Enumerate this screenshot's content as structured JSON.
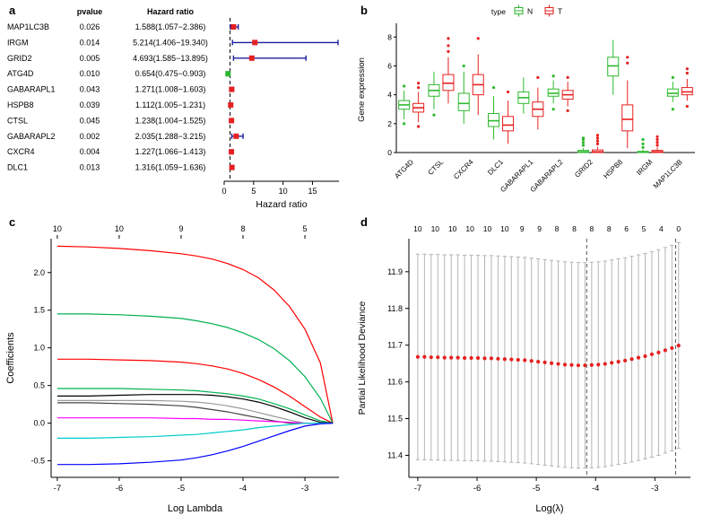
{
  "chart_data": [
    {
      "panel": "a",
      "type": "forest",
      "col_headers": {
        "pvalue": "pvalue",
        "hr": "Hazard ratio"
      },
      "xlabel": "Hazard ratio",
      "x_ticks": [
        0,
        5,
        10,
        15
      ],
      "x_max": 19.5,
      "ref_line": 1,
      "ci_color": "#1f1fa0",
      "rows": [
        {
          "gene": "MAP1LC3B",
          "pvalue": "0.026",
          "hr_text": "1.588(1.057−2.386)",
          "hr": 1.588,
          "lo": 1.057,
          "hi": 2.386,
          "color": "#e62020"
        },
        {
          "gene": "IRGM",
          "pvalue": "0.014",
          "hr_text": "5.214(1.406−19.340)",
          "hr": 5.214,
          "lo": 1.406,
          "hi": 19.34,
          "color": "#e62020"
        },
        {
          "gene": "GRID2",
          "pvalue": "0.005",
          "hr_text": "4.693(1.585−13.895)",
          "hr": 4.693,
          "lo": 1.585,
          "hi": 13.895,
          "color": "#e62020"
        },
        {
          "gene": "ATG4D",
          "pvalue": "0.010",
          "hr_text": "0.654(0.475−0.903)",
          "hr": 0.654,
          "lo": 0.475,
          "hi": 0.903,
          "color": "#2db92d"
        },
        {
          "gene": "GABARAPL1",
          "pvalue": "0.043",
          "hr_text": "1.271(1.008−1.603)",
          "hr": 1.271,
          "lo": 1.008,
          "hi": 1.603,
          "color": "#e62020"
        },
        {
          "gene": "HSPB8",
          "pvalue": "0.039",
          "hr_text": "1.112(1.005−1.231)",
          "hr": 1.112,
          "lo": 1.005,
          "hi": 1.231,
          "color": "#e62020"
        },
        {
          "gene": "CTSL",
          "pvalue": "0.045",
          "hr_text": "1.238(1.004−1.525)",
          "hr": 1.238,
          "lo": 1.004,
          "hi": 1.525,
          "color": "#e62020"
        },
        {
          "gene": "GABARAPL2",
          "pvalue": "0.002",
          "hr_text": "2.035(1.288−3.215)",
          "hr": 2.035,
          "lo": 1.288,
          "hi": 3.215,
          "color": "#e62020"
        },
        {
          "gene": "CXCR4",
          "pvalue": "0.004",
          "hr_text": "1.227(1.066−1.413)",
          "hr": 1.227,
          "lo": 1.066,
          "hi": 1.413,
          "color": "#e62020"
        },
        {
          "gene": "DLC1",
          "pvalue": "0.013",
          "hr_text": "1.316(1.059−1.636)",
          "hr": 1.316,
          "lo": 1.059,
          "hi": 1.636,
          "color": "#e62020"
        }
      ]
    },
    {
      "panel": "b",
      "type": "boxplot",
      "ylabel": "Gene expression",
      "y_ticks": [
        0,
        2,
        4,
        6,
        8
      ],
      "y_max": 8.7,
      "legend": {
        "title": "type",
        "items": [
          {
            "label": "N",
            "color": "#2db92d"
          },
          {
            "label": "T",
            "color": "#e62020"
          }
        ]
      },
      "genes": [
        "ATG4D",
        "CTSL",
        "CXCR4",
        "DLC1",
        "GABARAPL1",
        "GABARAPL2",
        "GRID2",
        "HSPB8",
        "IRGM",
        "MAP1LC3B"
      ],
      "series": [
        {
          "name": "N",
          "color": "#2db92d",
          "boxes": [
            [
              2.3,
              3.0,
              3.3,
              3.6,
              4.3
            ],
            [
              3.0,
              3.9,
              4.3,
              4.7,
              5.6
            ],
            [
              2.0,
              2.9,
              3.4,
              4.1,
              5.6
            ],
            [
              0.9,
              1.8,
              2.2,
              2.7,
              3.9
            ],
            [
              2.7,
              3.4,
              3.8,
              4.2,
              5.2
            ],
            [
              3.4,
              3.9,
              4.1,
              4.4,
              5.0
            ],
            [
              0.0,
              0.0,
              0.05,
              0.15,
              0.3
            ],
            [
              4.0,
              5.3,
              6.0,
              6.6,
              7.8
            ],
            [
              0.0,
              0.0,
              0.02,
              0.08,
              0.2
            ],
            [
              3.5,
              3.9,
              4.1,
              4.4,
              4.9
            ]
          ],
          "outliers": [
            [
              2.0,
              4.6
            ],
            [
              2.6
            ],
            [
              6.0
            ],
            [
              4.5
            ],
            [],
            [
              3.0,
              5.3
            ],
            [
              0.5,
              0.7,
              0.9,
              1.0
            ],
            [],
            [
              0.35,
              0.6,
              0.9
            ],
            [
              3.0,
              5.2
            ]
          ]
        },
        {
          "name": "T",
          "color": "#e62020",
          "boxes": [
            [
              2.1,
              2.8,
              3.1,
              3.4,
              4.2
            ],
            [
              3.4,
              4.3,
              4.8,
              5.4,
              6.6
            ],
            [
              2.6,
              4.0,
              4.7,
              5.4,
              6.8
            ],
            [
              0.6,
              1.5,
              1.9,
              2.5,
              3.6
            ],
            [
              1.6,
              2.5,
              3.0,
              3.5,
              4.5
            ],
            [
              3.2,
              3.7,
              4.0,
              4.3,
              4.9
            ],
            [
              0.0,
              0.0,
              0.05,
              0.18,
              0.4
            ],
            [
              0.3,
              1.5,
              2.3,
              3.3,
              5.0
            ],
            [
              0.0,
              0.0,
              0.05,
              0.15,
              0.35
            ],
            [
              3.6,
              4.0,
              4.2,
              4.5,
              5.1
            ]
          ],
          "outliers": [
            [
              1.8,
              4.5,
              4.8
            ],
            [
              7.0,
              7.4,
              7.9
            ],
            [
              7.9
            ],
            [
              4.2
            ],
            [
              5.2
            ],
            [
              2.9,
              5.2
            ],
            [
              0.6,
              0.8,
              1.0,
              1.2
            ],
            [
              6.2,
              6.6
            ],
            [
              0.5,
              0.7,
              0.9,
              1.1
            ],
            [
              3.2,
              5.5,
              5.8
            ]
          ]
        }
      ]
    },
    {
      "panel": "c",
      "type": "line",
      "xlabel": "Log Lambda",
      "ylabel": "Coefficients",
      "x_ticks": [
        -7,
        -6,
        -5,
        -4,
        -3
      ],
      "y_tick_labels": [
        "-0.5",
        "0.0",
        "0.5",
        "1.0",
        "1.5",
        "2.0"
      ],
      "top_ticks": [
        {
          "x": -7,
          "label": "10"
        },
        {
          "x": -6,
          "label": "10"
        },
        {
          "x": -5,
          "label": "9"
        },
        {
          "x": -4,
          "label": "8"
        },
        {
          "x": -3,
          "label": "5"
        }
      ],
      "x_range": [
        -7.1,
        -2.45
      ],
      "y_range": [
        -0.72,
        2.45
      ],
      "x_samples": [
        -7,
        -6.5,
        -6,
        -5.5,
        -5,
        -4.75,
        -4.5,
        -4.25,
        -4,
        -3.75,
        -3.5,
        -3.25,
        -3,
        -2.75,
        -2.55
      ],
      "series": [
        {
          "color": "#ff0000",
          "y": [
            2.35,
            2.34,
            2.32,
            2.29,
            2.25,
            2.22,
            2.18,
            2.12,
            2.04,
            1.93,
            1.77,
            1.55,
            1.25,
            0.8,
            0.0
          ]
        },
        {
          "color": "#00b050",
          "y": [
            1.45,
            1.45,
            1.44,
            1.42,
            1.39,
            1.36,
            1.32,
            1.27,
            1.2,
            1.11,
            0.99,
            0.83,
            0.62,
            0.33,
            0.0
          ]
        },
        {
          "color": "#ff0000",
          "y": [
            0.85,
            0.85,
            0.84,
            0.83,
            0.81,
            0.79,
            0.76,
            0.72,
            0.66,
            0.58,
            0.48,
            0.36,
            0.22,
            0.08,
            0.0
          ]
        },
        {
          "color": "#00b050",
          "y": [
            0.46,
            0.46,
            0.46,
            0.45,
            0.44,
            0.43,
            0.41,
            0.39,
            0.36,
            0.32,
            0.26,
            0.19,
            0.11,
            0.03,
            0.0
          ]
        },
        {
          "color": "#000000",
          "y": [
            0.36,
            0.36,
            0.37,
            0.38,
            0.38,
            0.38,
            0.37,
            0.35,
            0.32,
            0.28,
            0.22,
            0.15,
            0.07,
            0.01,
            0.0
          ]
        },
        {
          "color": "#9a9a9a",
          "y": [
            0.3,
            0.3,
            0.3,
            0.3,
            0.29,
            0.28,
            0.26,
            0.23,
            0.19,
            0.14,
            0.09,
            0.04,
            0.0,
            0.0,
            0.0
          ]
        },
        {
          "color": "#444444",
          "y": [
            0.27,
            0.27,
            0.26,
            0.25,
            0.23,
            0.21,
            0.18,
            0.15,
            0.11,
            0.07,
            0.03,
            0.0,
            0.0,
            0.0,
            0.0
          ]
        },
        {
          "color": "#ff00ff",
          "y": [
            0.07,
            0.07,
            0.07,
            0.07,
            0.06,
            0.06,
            0.05,
            0.05,
            0.04,
            0.03,
            0.02,
            0.01,
            0.0,
            0.0,
            0.0
          ]
        },
        {
          "color": "#00cccc",
          "y": [
            -0.2,
            -0.2,
            -0.19,
            -0.18,
            -0.16,
            -0.15,
            -0.13,
            -0.11,
            -0.09,
            -0.06,
            -0.04,
            -0.02,
            0.0,
            0.0,
            0.0
          ]
        },
        {
          "color": "#0000ff",
          "y": [
            -0.55,
            -0.55,
            -0.54,
            -0.52,
            -0.49,
            -0.46,
            -0.42,
            -0.37,
            -0.31,
            -0.24,
            -0.17,
            -0.1,
            -0.04,
            -0.01,
            0.0
          ]
        }
      ]
    },
    {
      "panel": "d",
      "type": "scatter-errorbar",
      "xlabel": "Log(λ)",
      "ylabel": "Partial Likelihood Deviance",
      "x_ticks": [
        -7,
        -6,
        -5,
        -4,
        -3
      ],
      "y_tick_labels": [
        "11.4",
        "11.5",
        "11.6",
        "11.7",
        "11.8",
        "11.9"
      ],
      "top_labels": [
        "10",
        "10",
        "10",
        "10",
        "10",
        "10",
        "9",
        "9",
        "8",
        "8",
        "8",
        "8",
        "6",
        "5",
        "4",
        "0"
      ],
      "dashed_x": [
        -4.15,
        -2.65
      ],
      "x_range": [
        -7.15,
        -2.4
      ],
      "y_range": [
        11.34,
        11.99
      ],
      "points": {
        "x_start": -7,
        "x_end": -2.6,
        "err": 0.28,
        "dot_color": "#e62020",
        "bar_color": "#b5b5b5",
        "y": [
          11.668,
          11.668,
          11.667,
          11.667,
          11.666,
          11.666,
          11.666,
          11.665,
          11.665,
          11.665,
          11.664,
          11.664,
          11.663,
          11.662,
          11.661,
          11.66,
          11.659,
          11.657,
          11.655,
          11.653,
          11.651,
          11.649,
          11.647,
          11.646,
          11.645,
          11.645,
          11.646,
          11.647,
          11.649,
          11.652,
          11.655,
          11.658,
          11.662,
          11.666,
          11.67,
          11.675,
          11.68,
          11.686,
          11.692,
          11.699
        ]
      }
    }
  ]
}
